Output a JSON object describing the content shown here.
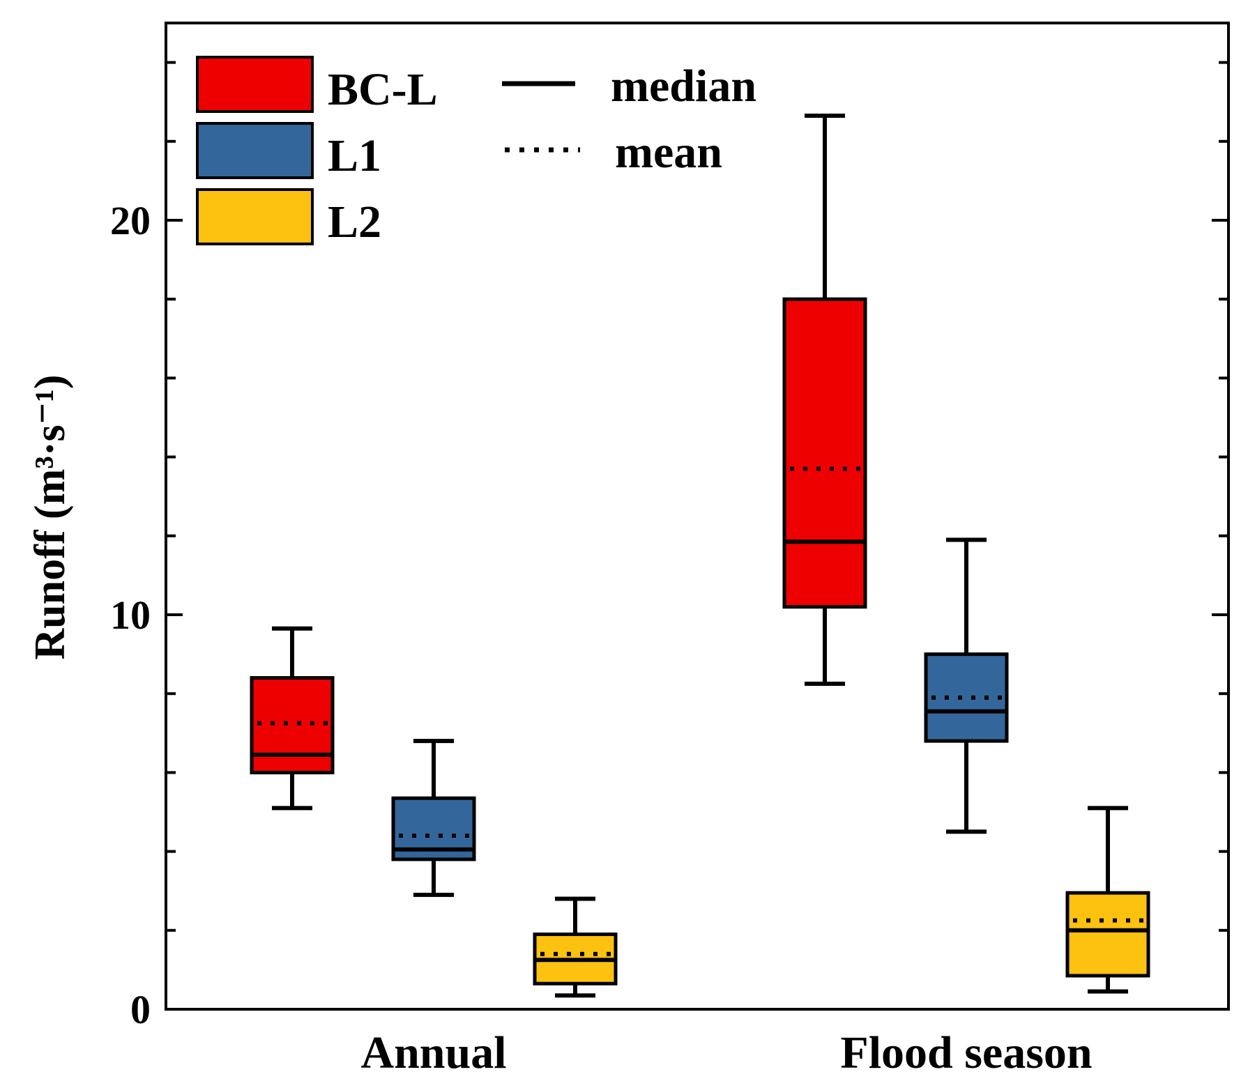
{
  "chart_data": {
    "type": "box",
    "categories": [
      "Annual",
      "Flood season"
    ],
    "ylabel": "Runoff (m³·s⁻¹)",
    "xlabel": "",
    "ylim": [
      0,
      25
    ],
    "yticks": [
      0,
      10,
      20
    ],
    "ytick_labels": [
      "0",
      "10",
      "20"
    ],
    "series": [
      {
        "name": "BC-L",
        "color": "#ee0000",
        "boxes": [
          {
            "category": "Annual",
            "whisker_low": 5.1,
            "q1": 6.0,
            "median": 6.45,
            "mean": 7.25,
            "q3": 8.4,
            "whisker_high": 9.65
          },
          {
            "category": "Flood season",
            "whisker_low": 8.25,
            "q1": 10.2,
            "median": 11.85,
            "mean": 13.7,
            "q3": 18.0,
            "whisker_high": 22.65
          }
        ]
      },
      {
        "name": "L1",
        "color": "#33679c",
        "boxes": [
          {
            "category": "Annual",
            "whisker_low": 2.9,
            "q1": 3.8,
            "median": 4.05,
            "mean": 4.4,
            "q3": 5.35,
            "whisker_high": 6.8
          },
          {
            "category": "Flood season",
            "whisker_low": 4.5,
            "q1": 6.8,
            "median": 7.55,
            "mean": 7.9,
            "q3": 9.0,
            "whisker_high": 11.9
          }
        ]
      },
      {
        "name": "L2",
        "color": "#fdc10f",
        "boxes": [
          {
            "category": "Annual",
            "whisker_low": 0.35,
            "q1": 0.65,
            "median": 1.25,
            "mean": 1.4,
            "q3": 1.9,
            "whisker_high": 2.8
          },
          {
            "category": "Flood season",
            "whisker_low": 0.45,
            "q1": 0.85,
            "median": 2.0,
            "mean": 2.25,
            "q3": 2.95,
            "whisker_high": 5.1
          }
        ]
      }
    ],
    "legend": {
      "placement": "top-left",
      "entries": [
        "BC-L",
        "L1",
        "L2"
      ],
      "line_entries": [
        {
          "label": "median",
          "style": "solid"
        },
        {
          "label": "mean",
          "style": "dotted"
        }
      ]
    },
    "grid": false
  }
}
